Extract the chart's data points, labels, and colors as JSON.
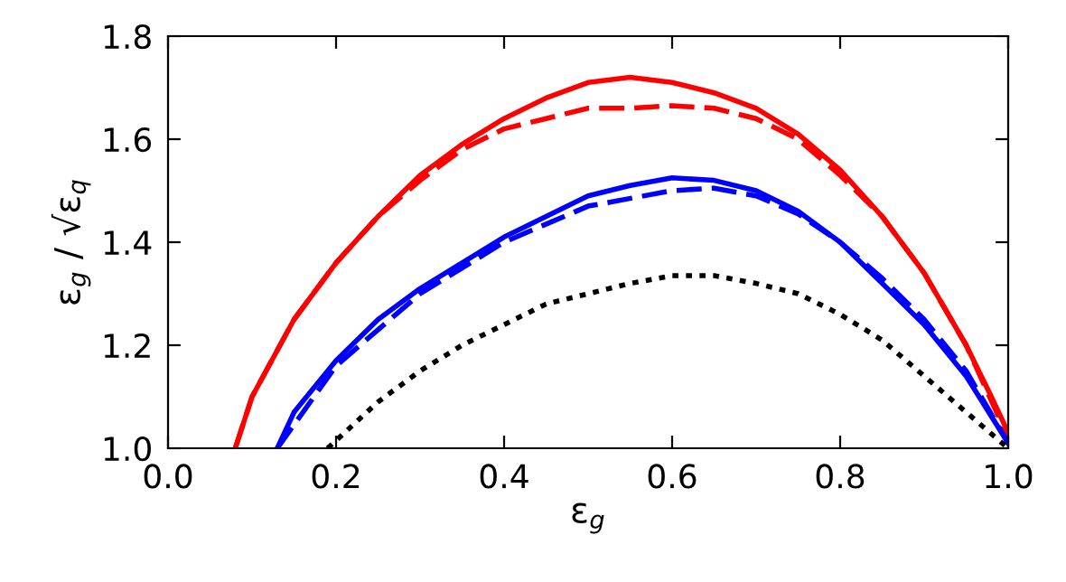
{
  "chart_data": {
    "type": "line",
    "xlabel": "ε$_{g}$",
    "ylabel": "ε$_{g}$ / √ε$_{q}$",
    "xlim": [
      0,
      1
    ],
    "ylim": [
      1.0,
      1.8
    ],
    "xticks": [
      {
        "value": 0,
        "label": "0.0"
      },
      {
        "value": 0.2,
        "label": "0.2"
      },
      {
        "value": 0.4,
        "label": "0.4"
      },
      {
        "value": 0.6,
        "label": "0.6"
      },
      {
        "value": 0.8,
        "label": "0.8"
      },
      {
        "value": 1,
        "label": "1.0"
      }
    ],
    "yticks": [
      {
        "value": 1,
        "label": "1.0"
      },
      1.2,
      1.4,
      1.6,
      1.8
    ],
    "grid": false,
    "marker": "none",
    "series": [
      {
        "color": "#ff0000",
        "line_style": "solid",
        "x": [
          0.08,
          0.1,
          0.15,
          0.2,
          0.25,
          0.3,
          0.35,
          0.4,
          0.45,
          0.5,
          0.55,
          0.6,
          0.65,
          0.7,
          0.75,
          0.8,
          0.85,
          0.9,
          0.95,
          0.98,
          1.0
        ],
        "values": [
          1.0,
          1.1,
          1.25,
          1.36,
          1.45,
          1.53,
          1.59,
          1.64,
          1.68,
          1.71,
          1.72,
          1.71,
          1.69,
          1.66,
          1.61,
          1.54,
          1.45,
          1.34,
          1.2,
          1.1,
          1.03
        ]
      },
      {
        "color": "#ff0000",
        "line_style": "dashed",
        "x": [
          0.08,
          0.1,
          0.15,
          0.2,
          0.25,
          0.3,
          0.35,
          0.4,
          0.45,
          0.5,
          0.55,
          0.6,
          0.65,
          0.7,
          0.75,
          0.8,
          0.85,
          0.9,
          0.95,
          1.0
        ],
        "values": [
          1.0,
          1.1,
          1.25,
          1.36,
          1.45,
          1.52,
          1.58,
          1.62,
          1.64,
          1.66,
          1.66,
          1.665,
          1.66,
          1.64,
          1.6,
          1.53,
          1.45,
          1.34,
          1.2,
          1.02
        ]
      },
      {
        "color": "#0000ff",
        "line_style": "solid",
        "x": [
          0.13,
          0.15,
          0.2,
          0.25,
          0.3,
          0.35,
          0.4,
          0.45,
          0.5,
          0.55,
          0.6,
          0.65,
          0.7,
          0.75,
          0.8,
          0.85,
          0.9,
          0.95,
          1.0
        ],
        "values": [
          1.0,
          1.07,
          1.17,
          1.25,
          1.31,
          1.36,
          1.41,
          1.45,
          1.49,
          1.51,
          1.525,
          1.52,
          1.5,
          1.46,
          1.4,
          1.32,
          1.24,
          1.14,
          1.01
        ]
      },
      {
        "color": "#0000ff",
        "line_style": "dashed",
        "x": [
          0.13,
          0.2,
          0.3,
          0.4,
          0.5,
          0.6,
          0.65,
          0.7,
          0.75,
          0.8,
          0.85,
          0.9,
          0.95,
          1.0
        ],
        "values": [
          1.0,
          1.16,
          1.3,
          1.4,
          1.47,
          1.5,
          1.505,
          1.49,
          1.455,
          1.4,
          1.33,
          1.25,
          1.15,
          1.01
        ]
      },
      {
        "color": "#000000",
        "line_style": "dotted",
        "x": [
          0.19,
          0.25,
          0.3,
          0.35,
          0.4,
          0.45,
          0.5,
          0.55,
          0.6,
          0.65,
          0.7,
          0.75,
          0.8,
          0.85,
          0.9,
          0.95,
          1.0
        ],
        "values": [
          1.0,
          1.09,
          1.15,
          1.2,
          1.24,
          1.28,
          1.3,
          1.32,
          1.335,
          1.335,
          1.32,
          1.3,
          1.26,
          1.21,
          1.14,
          1.07,
          1.0
        ]
      }
    ]
  }
}
